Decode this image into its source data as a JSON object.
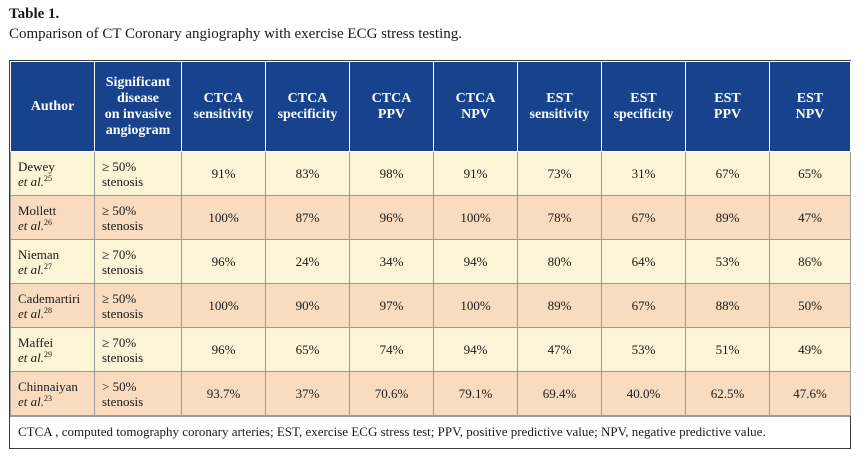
{
  "caption": {
    "title": "Table 1.",
    "subtitle": "Comparison of CT Coronary angiography with exercise ECG stress testing."
  },
  "headers": [
    [
      "Author"
    ],
    [
      "Significant",
      "disease",
      "on invasive",
      "angiogram"
    ],
    [
      "CTCA",
      "sensitivity"
    ],
    [
      "CTCA",
      "specificity"
    ],
    [
      "CTCA",
      "PPV"
    ],
    [
      "CTCA",
      "NPV"
    ],
    [
      "EST",
      "sensitivity"
    ],
    [
      "EST",
      "specificity"
    ],
    [
      "EST",
      "PPV"
    ],
    [
      "EST",
      "NPV"
    ]
  ],
  "rows": [
    {
      "author": "Dewey",
      "etal": "et al.",
      "ref": "25",
      "disease": [
        "≥ 50%",
        "stenosis"
      ],
      "values": [
        "91%",
        "83%",
        "98%",
        "91%",
        "73%",
        "31%",
        "67%",
        "65%"
      ]
    },
    {
      "author": "Mollett",
      "etal": "et al.",
      "ref": "26",
      "disease": [
        "≥ 50%",
        "stenosis"
      ],
      "values": [
        "100%",
        "87%",
        "96%",
        "100%",
        "78%",
        "67%",
        "89%",
        "47%"
      ]
    },
    {
      "author": "Nieman",
      "etal": "et al.",
      "ref": "27",
      "disease": [
        "≥ 70%",
        "stenosis"
      ],
      "values": [
        "96%",
        "24%",
        "34%",
        "94%",
        "80%",
        "64%",
        "53%",
        "86%"
      ]
    },
    {
      "author": "Cademartiri",
      "etal": "et al.",
      "ref": "28",
      "disease": [
        "≥ 50%",
        "stenosis"
      ],
      "values": [
        "100%",
        "90%",
        "97%",
        "100%",
        "89%",
        "67%",
        "88%",
        "50%"
      ]
    },
    {
      "author": "Maffei",
      "etal": "et al.",
      "ref": "29",
      "disease": [
        "≥ 70%",
        "stenosis"
      ],
      "values": [
        "96%",
        "65%",
        "74%",
        "94%",
        "47%",
        "53%",
        "51%",
        "49%"
      ]
    },
    {
      "author": "Chinnaiyan",
      "etal": "et al.",
      "ref": "23",
      "disease": [
        "> 50%",
        "stenosis"
      ],
      "values": [
        "93.7%",
        "37%",
        "70.6%",
        "79.1%",
        "69.4%",
        "40.0%",
        "62.5%",
        "47.6%"
      ]
    }
  ],
  "footnote": "CTCA , computed tomography coronary arteries; EST, exercise ECG stress test; PPV, positive predictive value; NPV, negative predictive value.",
  "colors": {
    "header_bg": "#18428c",
    "row_yellow": "#fcf4d6",
    "row_peach": "#f9dcbf"
  }
}
